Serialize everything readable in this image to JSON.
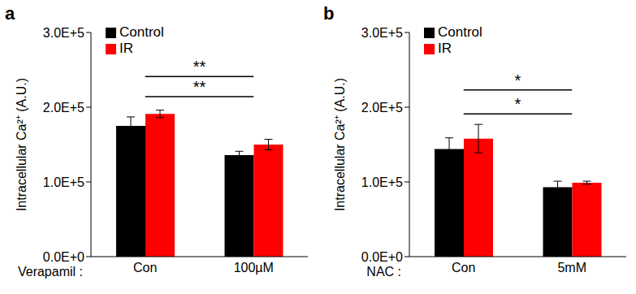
{
  "chart_data": [
    {
      "type": "bar",
      "title": "a",
      "x_label": "Verapamil :",
      "y_label": "Intracellular Ca²⁺ (A.U.)",
      "categories": [
        "Con",
        "100µM"
      ],
      "series": [
        {
          "name": "Control",
          "color": "#000000",
          "values": [
            175000,
            136000
          ],
          "errors": [
            12000,
            5000
          ]
        },
        {
          "name": "IR",
          "color": "#ff0000",
          "values": [
            191000,
            150000
          ],
          "errors": [
            5000,
            7000
          ]
        }
      ],
      "ylim": [
        0,
        300000
      ],
      "yticks": [
        {
          "value": 0,
          "label": "0.0E+0"
        },
        {
          "value": 100000,
          "label": "1.0E+5"
        },
        {
          "value": 200000,
          "label": "2.0E+5"
        },
        {
          "value": 300000,
          "label": "3.0E+5"
        }
      ],
      "legend": "upper left",
      "annotations": [
        {
          "text": "**",
          "from": "Con",
          "to": "100µM",
          "y": 214000
        },
        {
          "text": "**",
          "from": "Con",
          "to": "100µM",
          "y": 241000
        }
      ]
    },
    {
      "type": "bar",
      "title": "b",
      "x_label": "NAC :",
      "y_label": "Intracellular Ca²⁺ (A.U.)",
      "categories": [
        "Con",
        "5mM"
      ],
      "series": [
        {
          "name": "Control",
          "color": "#000000",
          "values": [
            144000,
            93000
          ],
          "errors": [
            15000,
            8000
          ]
        },
        {
          "name": "IR",
          "color": "#ff0000",
          "values": [
            158000,
            99000
          ],
          "errors": [
            19000,
            2000
          ]
        }
      ],
      "ylim": [
        0,
        300000
      ],
      "yticks": [
        {
          "value": 0,
          "label": "0.0E+0"
        },
        {
          "value": 100000,
          "label": "1.0E+5"
        },
        {
          "value": 200000,
          "label": "2.0E+5"
        },
        {
          "value": 300000,
          "label": "3.0E+5"
        }
      ],
      "legend": "upper left",
      "annotations": [
        {
          "text": "*",
          "from": "Con",
          "to": "5mM",
          "y": 191000
        },
        {
          "text": "*",
          "from": "Con",
          "to": "5mM",
          "y": 223000
        }
      ]
    }
  ]
}
